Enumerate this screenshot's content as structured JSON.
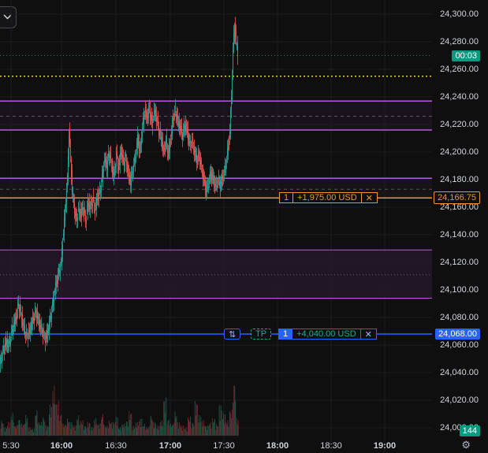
{
  "chart_data": {
    "type": "candlestick",
    "price_axis": {
      "ticks": [
        "24,300.00",
        "24,280.00",
        "24,260.00",
        "24,240.00",
        "24,220.00",
        "24,200.00",
        "24,180.00",
        "24,160.00",
        "24,140.00",
        "24,120.00",
        "24,100.00",
        "24,080.00",
        "24,060.00",
        "24,040.00",
        "24,020.00",
        "24,000.00"
      ],
      "range": [
        23996,
        24308
      ]
    },
    "time_axis": {
      "ticks": [
        {
          "label": "5:30",
          "bold": false
        },
        {
          "label": "16:00",
          "bold": true
        },
        {
          "label": "16:30",
          "bold": false
        },
        {
          "label": "17:00",
          "bold": true
        },
        {
          "label": "17:30",
          "bold": false
        },
        {
          "label": "18:00",
          "bold": true
        },
        {
          "label": "18:30",
          "bold": false
        },
        {
          "label": "19:00",
          "bold": true
        }
      ]
    },
    "close_path": [
      [
        0,
        24046
      ],
      [
        4,
        24055
      ],
      [
        8,
        24062
      ],
      [
        12,
        24060
      ],
      [
        16,
        24072
      ],
      [
        20,
        24078
      ],
      [
        24,
        24090
      ],
      [
        27,
        24082
      ],
      [
        30,
        24074
      ],
      [
        34,
        24066
      ],
      [
        38,
        24070
      ],
      [
        42,
        24078
      ],
      [
        46,
        24084
      ],
      [
        50,
        24076
      ],
      [
        54,
        24070
      ],
      [
        58,
        24064
      ],
      [
        62,
        24072
      ],
      [
        66,
        24085
      ],
      [
        70,
        24100
      ],
      [
        74,
        24110
      ],
      [
        78,
        24120
      ],
      [
        82,
        24150
      ],
      [
        86,
        24180
      ],
      [
        88,
        24215
      ],
      [
        90,
        24195
      ],
      [
        92,
        24172
      ],
      [
        94,
        24162
      ],
      [
        97,
        24150
      ],
      [
        100,
        24158
      ],
      [
        103,
        24155
      ],
      [
        106,
        24160
      ],
      [
        109,
        24150
      ],
      [
        112,
        24163
      ],
      [
        115,
        24160
      ],
      [
        118,
        24165
      ],
      [
        121,
        24158
      ],
      [
        124,
        24168
      ],
      [
        127,
        24170
      ],
      [
        130,
        24182
      ],
      [
        133,
        24195
      ],
      [
        136,
        24190
      ],
      [
        139,
        24200
      ],
      [
        142,
        24190
      ],
      [
        145,
        24182
      ],
      [
        148,
        24198
      ],
      [
        151,
        24188
      ],
      [
        154,
        24202
      ],
      [
        157,
        24192
      ],
      [
        160,
        24195
      ],
      [
        163,
        24185
      ],
      [
        166,
        24178
      ],
      [
        169,
        24188
      ],
      [
        172,
        24196
      ],
      [
        175,
        24210
      ],
      [
        178,
        24200
      ],
      [
        181,
        24218
      ],
      [
        184,
        24230
      ],
      [
        187,
        24225
      ],
      [
        190,
        24232
      ],
      [
        193,
        24220
      ],
      [
        196,
        24230
      ],
      [
        199,
        24225
      ],
      [
        202,
        24215
      ],
      [
        205,
        24210
      ],
      [
        208,
        24200
      ],
      [
        211,
        24208
      ],
      [
        214,
        24198
      ],
      [
        217,
        24210
      ],
      [
        220,
        24225
      ],
      [
        223,
        24230
      ],
      [
        226,
        24222
      ],
      [
        229,
        24218
      ],
      [
        232,
        24212
      ],
      [
        235,
        24220
      ],
      [
        238,
        24215
      ],
      [
        241,
        24205
      ],
      [
        244,
        24208
      ],
      [
        247,
        24200
      ],
      [
        250,
        24194
      ],
      [
        253,
        24198
      ],
      [
        256,
        24188
      ],
      [
        259,
        24180
      ],
      [
        262,
        24172
      ],
      [
        265,
        24178
      ],
      [
        268,
        24185
      ],
      [
        271,
        24180
      ],
      [
        274,
        24175
      ],
      [
        277,
        24180
      ],
      [
        280,
        24176
      ],
      [
        283,
        24182
      ],
      [
        286,
        24188
      ],
      [
        289,
        24200
      ],
      [
        292,
        24215
      ],
      [
        294,
        24240
      ],
      [
        296,
        24275
      ],
      [
        298,
        24292
      ],
      [
        300,
        24280
      ],
      [
        302,
        24272
      ]
    ],
    "volume_path": [
      18,
      10,
      16,
      26,
      12,
      20,
      14,
      24,
      10,
      8,
      30,
      16,
      22,
      12,
      36,
      58,
      40,
      26,
      14,
      20,
      16,
      12,
      24,
      18,
      12,
      16,
      10,
      20,
      14,
      26,
      12,
      18,
      16,
      22,
      10,
      14,
      18,
      28,
      12,
      16,
      20,
      14,
      10,
      24,
      16,
      12,
      18,
      44,
      20,
      14,
      28,
      16,
      12,
      10,
      22,
      16,
      40,
      24,
      18,
      12,
      16,
      20,
      14,
      36,
      26,
      18,
      30,
      64,
      20
    ],
    "levels": [
      {
        "price": 24300,
        "label": "24,300.00"
      },
      {
        "price": 24270,
        "label": "00:03",
        "note": "countdown tag"
      },
      {
        "price": 24255,
        "label": "yellow dotted"
      },
      {
        "price": 24237,
        "label": "purple line"
      },
      {
        "price": 24226,
        "label": "dashed"
      },
      {
        "price": 24216,
        "label": "purple line"
      },
      {
        "price": 24181,
        "label": "purple line"
      },
      {
        "price": 24173,
        "label": "dashed"
      },
      {
        "price": 24166.75,
        "label": "24,166.75"
      },
      {
        "price": 24129,
        "label": "zone top"
      },
      {
        "price": 24111,
        "label": "dotted"
      },
      {
        "price": 24094,
        "label": "zone bottom"
      },
      {
        "price": 24068,
        "label": "24,068.00"
      }
    ]
  },
  "tags": {
    "countdown": "00:03",
    "volume": "144",
    "position_price": "24,166.75",
    "tp_price": "24,068.00"
  },
  "orders": {
    "position": {
      "qty": "1",
      "pnl": "+1,975.00 USD",
      "close": "✕"
    },
    "tp": {
      "reverse": "⇅",
      "label": "TP",
      "qty": "1",
      "pnl": "+4,040.00 USD",
      "close": "✕"
    }
  },
  "colors": {
    "bull": "#26a69a",
    "bear": "#ef5350",
    "purple": "#b65cd9",
    "orange": "#f0962a",
    "blue": "#2962ff",
    "yellow": "#e5d426",
    "teal_tag": "#089981",
    "dotted_green": "#2e7d5b"
  },
  "icons": {
    "toggle": "chevron-down-icon",
    "settings": "gear-icon"
  }
}
